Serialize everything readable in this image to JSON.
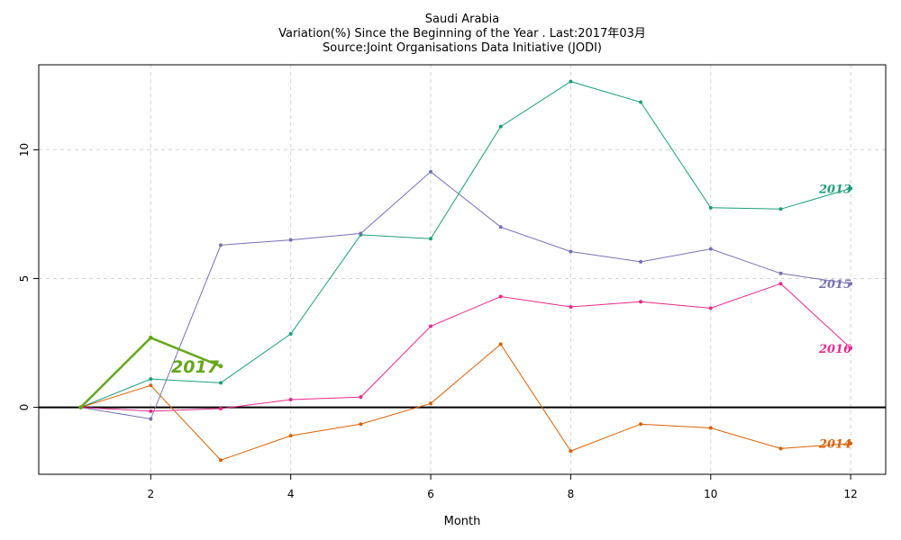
{
  "chart_data": {
    "type": "line",
    "title": "Saudi Arabia",
    "subtitle": "Variation(%) Since the Beginning of the Year . Last:2017年03月",
    "source": "Source:Joint Organisations Data Initiative (JODI)",
    "xlabel": "Month",
    "ylabel": "",
    "xlim": [
      0.4,
      12.5
    ],
    "ylim": [
      -2.6,
      13.3
    ],
    "xticks": [
      2,
      4,
      6,
      8,
      10,
      12
    ],
    "yticks": [
      0,
      5,
      10
    ],
    "grid": true,
    "zero_line": true,
    "series": [
      {
        "name": "2013",
        "color": "#1b9e77",
        "x": [
          1,
          2,
          3,
          4,
          5,
          6,
          7,
          8,
          9,
          10,
          11,
          12
        ],
        "values": [
          0,
          1.1,
          0.95,
          2.85,
          6.7,
          6.55,
          10.9,
          12.65,
          11.85,
          7.75,
          7.7,
          8.5
        ]
      },
      {
        "name": "2014",
        "color": "#d95f02",
        "x": [
          1,
          2,
          3,
          4,
          5,
          6,
          7,
          8,
          9,
          10,
          11,
          12
        ],
        "values": [
          0,
          0.85,
          -2.05,
          -1.1,
          -0.65,
          0.15,
          2.45,
          -1.7,
          -0.65,
          -0.8,
          -1.6,
          -1.4
        ]
      },
      {
        "name": "2015",
        "color": "#7570b3",
        "x": [
          1,
          2,
          3,
          4,
          5,
          6,
          7,
          8,
          9,
          10,
          11,
          12
        ],
        "values": [
          0,
          -0.45,
          6.3,
          6.5,
          6.75,
          9.15,
          7.0,
          6.05,
          5.65,
          6.15,
          5.2,
          4.8
        ]
      },
      {
        "name": "2016",
        "color": "#e7298a",
        "x": [
          1,
          2,
          3,
          4,
          5,
          6,
          7,
          8,
          9,
          10,
          11,
          12
        ],
        "values": [
          0,
          -0.15,
          -0.05,
          0.3,
          0.4,
          3.15,
          4.3,
          3.9,
          4.1,
          3.85,
          4.8,
          2.3
        ]
      },
      {
        "name": "2017",
        "color": "#66a61e",
        "x": [
          1,
          2,
          3
        ],
        "values": [
          0,
          2.7,
          1.6
        ]
      }
    ]
  }
}
